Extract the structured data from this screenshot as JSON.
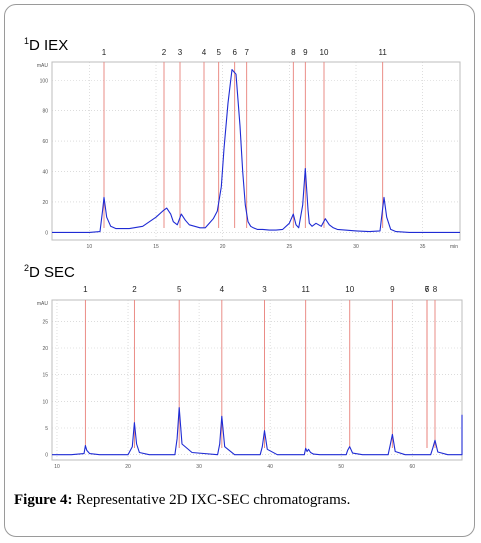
{
  "panels": [
    {
      "title_sup": "1",
      "title_text": "D IEX",
      "yunit": "mAU",
      "xunit": "min",
      "ylim": [
        -5,
        112
      ],
      "xlim": [
        7.2,
        37.8
      ],
      "yticks": [
        0,
        20,
        40,
        60,
        80,
        100
      ],
      "xticks": [
        10,
        15,
        20,
        25,
        30,
        35
      ],
      "x": [
        7.2,
        8,
        9,
        10,
        10.8,
        11.0,
        11.1,
        11.3,
        11.6,
        12,
        13,
        14,
        15,
        15.5,
        15.8,
        16.1,
        16.3,
        16.6,
        16.9,
        17.2,
        17.5,
        17.9,
        18.3,
        18.7,
        19.0,
        19.3,
        19.6,
        19.9,
        20.1,
        20.4,
        20.7,
        21.0,
        21.3,
        21.5,
        21.7,
        21.9,
        22.1,
        22.3,
        22.6,
        23.0,
        23.5,
        24.0,
        24.5,
        25.0,
        25.3,
        25.5,
        25.7,
        26.0,
        26.2,
        26.4,
        26.5,
        26.7,
        27.0,
        27.4,
        27.7,
        28.0,
        28.3,
        28.6,
        29.2,
        30,
        31,
        31.8,
        32.0,
        32.1,
        32.3,
        32.6,
        33,
        34,
        35,
        36,
        37,
        37.8
      ],
      "y": [
        0,
        0,
        0,
        0,
        0.5,
        15,
        23,
        10,
        4,
        2.5,
        2.5,
        4,
        10,
        14,
        16,
        12,
        7,
        5,
        12,
        8,
        5,
        4,
        3,
        3,
        6,
        9,
        14,
        30,
        55,
        85,
        107,
        104,
        70,
        40,
        18,
        7,
        4,
        3,
        2,
        2,
        1.5,
        1.5,
        2,
        6,
        12,
        5,
        3,
        18,
        42,
        15,
        6,
        4,
        6,
        4,
        9,
        5,
        3,
        2,
        1.5,
        1,
        0.5,
        1,
        16,
        23,
        10,
        2,
        0.5,
        0,
        0,
        0,
        0,
        0
      ],
      "peaks": [
        {
          "label": "1",
          "x": 11.1
        },
        {
          "label": "2",
          "x": 15.6
        },
        {
          "label": "3",
          "x": 16.8
        },
        {
          "label": "4",
          "x": 18.6
        },
        {
          "label": "5",
          "x": 19.7
        },
        {
          "label": "6",
          "x": 20.9
        },
        {
          "label": "7",
          "x": 21.8
        },
        {
          "label": "8",
          "x": 25.3
        },
        {
          "label": "9",
          "x": 26.2
        },
        {
          "label": "10",
          "x": 27.6
        },
        {
          "label": "11",
          "x": 32.0
        }
      ]
    },
    {
      "title_sup": "2",
      "title_text": "D SEC",
      "yunit": "mAU",
      "xunit": "",
      "ylim": [
        -1,
        29
      ],
      "xlim": [
        9.3,
        67
      ],
      "yticks": [
        0,
        5,
        10,
        15,
        20,
        25
      ],
      "xticks": [
        10,
        20,
        30,
        40,
        50,
        60
      ],
      "x": [
        9.3,
        12,
        13.8,
        14.0,
        14.2,
        14.6,
        16,
        20,
        20.6,
        20.9,
        21.2,
        21.6,
        23,
        26.6,
        26.9,
        27.2,
        27.6,
        29,
        32.6,
        32.9,
        33.2,
        33.6,
        35,
        38.6,
        38.9,
        39.2,
        39.6,
        41,
        44.8,
        45.0,
        45.2,
        45.4,
        45.7,
        46.1,
        47,
        50.7,
        50.9,
        51.2,
        51.6,
        53,
        56.6,
        56.9,
        57.2,
        57.6,
        59,
        62.6,
        62.9,
        63.2,
        63.6,
        65,
        67.6,
        68.0,
        68.3,
        68.7,
        69.2,
        70.5
      ],
      "y": [
        0,
        0,
        0.2,
        1.7,
        0.8,
        0.2,
        0,
        0,
        1.5,
        6,
        2,
        0.4,
        0,
        0,
        3,
        8.8,
        2,
        0.4,
        0,
        2,
        7.2,
        1.5,
        0,
        0,
        1.5,
        4.5,
        1,
        0,
        0,
        1.2,
        0.6,
        1.0,
        0.4,
        0.1,
        0,
        0,
        0.8,
        1.5,
        0.3,
        0,
        0,
        1.8,
        3.8,
        0.6,
        0,
        0,
        1.3,
        2.7,
        0.5,
        0,
        0,
        3,
        7.4,
        1.5,
        0.2,
        0
      ],
      "peaks": [
        {
          "label": "1",
          "x": 14.0
        },
        {
          "label": "2",
          "x": 20.9
        },
        {
          "label": "5",
          "x": 27.2
        },
        {
          "label": "4",
          "x": 33.2
        },
        {
          "label": "3",
          "x": 39.2
        },
        {
          "label": "11",
          "x": 45.0
        },
        {
          "label": "10",
          "x": 51.2
        },
        {
          "label": "9",
          "x": 57.2
        },
        {
          "label": "8",
          "x": 63.2
        },
        {
          "label": "7",
          "x": 68.0
        },
        {
          "label": "6",
          "x": 73.0
        }
      ]
    }
  ],
  "chart_data": [
    {
      "type": "line",
      "title": "1D IEX",
      "xlabel": "min",
      "ylabel": "mAU",
      "xlim": [
        7.2,
        37.8
      ],
      "ylim": [
        -5,
        112
      ],
      "peak_labels": [
        "1",
        "2",
        "3",
        "4",
        "5",
        "6",
        "7",
        "8",
        "9",
        "10",
        "11"
      ]
    },
    {
      "type": "line",
      "title": "2D SEC",
      "xlabel": "",
      "ylabel": "mAU",
      "xlim": [
        9.3,
        67
      ],
      "ylim": [
        -1,
        29
      ],
      "peak_labels": [
        "1",
        "2",
        "5",
        "4",
        "3",
        "11",
        "10",
        "9",
        "8",
        "7",
        "6"
      ]
    }
  ],
  "caption": {
    "label": "Figure 4:",
    "text": " Representative 2D IXC-SEC chromatograms."
  },
  "colors": {
    "trace": "#1f2bd4",
    "marker": "#e8807a",
    "grid": "#c8c8c8",
    "frame": "#9a9a9a"
  }
}
